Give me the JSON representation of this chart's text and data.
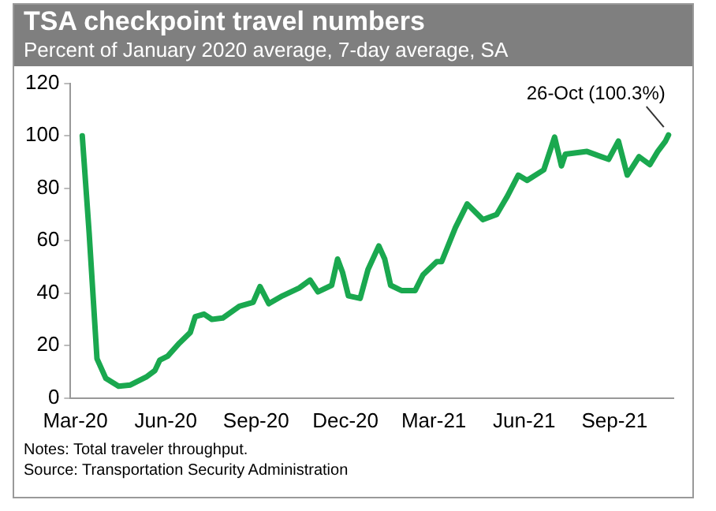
{
  "chart_data": {
    "type": "line",
    "title": "TSA checkpoint travel numbers",
    "subtitle": "Percent of January 2020 average, 7-day average, SA",
    "x": [
      "2020-03-08",
      "2020-03-15",
      "2020-03-23",
      "2020-04-01",
      "2020-04-14",
      "2020-04-26",
      "2020-05-12",
      "2020-05-21",
      "2020-05-26",
      "2020-06-03",
      "2020-06-15",
      "2020-06-26",
      "2020-07-01",
      "2020-07-10",
      "2020-07-18",
      "2020-07-29",
      "2020-08-15",
      "2020-08-29",
      "2020-09-05",
      "2020-09-14",
      "2020-09-28",
      "2020-10-15",
      "2020-10-26",
      "2020-11-03",
      "2020-11-17",
      "2020-11-23",
      "2020-11-28",
      "2020-12-04",
      "2020-12-16",
      "2020-12-24",
      "2021-01-04",
      "2021-01-10",
      "2021-01-16",
      "2021-01-27",
      "2021-02-10",
      "2021-02-18",
      "2021-03-04",
      "2021-03-09",
      "2021-03-23",
      "2021-04-04",
      "2021-04-20",
      "2021-05-04",
      "2021-05-15",
      "2021-05-26",
      "2021-06-04",
      "2021-06-21",
      "2021-07-02",
      "2021-07-09",
      "2021-07-13",
      "2021-08-04",
      "2021-08-26",
      "2021-09-05",
      "2021-09-14",
      "2021-09-26",
      "2021-10-07",
      "2021-10-15",
      "2021-10-23",
      "2021-10-26"
    ],
    "series": [
      {
        "color": "#1aa84f",
        "values": [
          100,
          63,
          15,
          7.5,
          4.5,
          5,
          8,
          10.5,
          14.5,
          16,
          21,
          25,
          31,
          32,
          30,
          30.5,
          35,
          36.5,
          42.5,
          36,
          39,
          42,
          45,
          40.5,
          43,
          53,
          48,
          39,
          38,
          49,
          58,
          53,
          43,
          41,
          41,
          47,
          52,
          52,
          65,
          74,
          68,
          70,
          77,
          85,
          83,
          87,
          99.5,
          88.5,
          93,
          94,
          91,
          98,
          85,
          92,
          89,
          94,
          98,
          100.3
        ]
      }
    ],
    "xlim": [
      "2020-02-25",
      "2021-10-31"
    ],
    "xticks": [
      {
        "value": "2020-03-01",
        "label": "Mar-20"
      },
      {
        "value": "2020-06-01",
        "label": "Jun-20"
      },
      {
        "value": "2020-09-01",
        "label": "Sep-20"
      },
      {
        "value": "2020-12-01",
        "label": "Dec-20"
      },
      {
        "value": "2021-03-01",
        "label": "Mar-21"
      },
      {
        "value": "2021-06-01",
        "label": "Jun-21"
      },
      {
        "value": "2021-09-01",
        "label": "Sep-21"
      }
    ],
    "ylim": [
      0,
      120
    ],
    "yticks": [
      0,
      20,
      40,
      60,
      80,
      100,
      120
    ],
    "grid": false,
    "legend": false,
    "marker": "none",
    "line_style": "solid",
    "annotations": [
      {
        "text": "26-Oct (100.3%)",
        "x": "2021-10-26",
        "y": 100.3
      },
      "Notes: Total traveler throughput.",
      "Source: Transportation Security Administration"
    ]
  }
}
